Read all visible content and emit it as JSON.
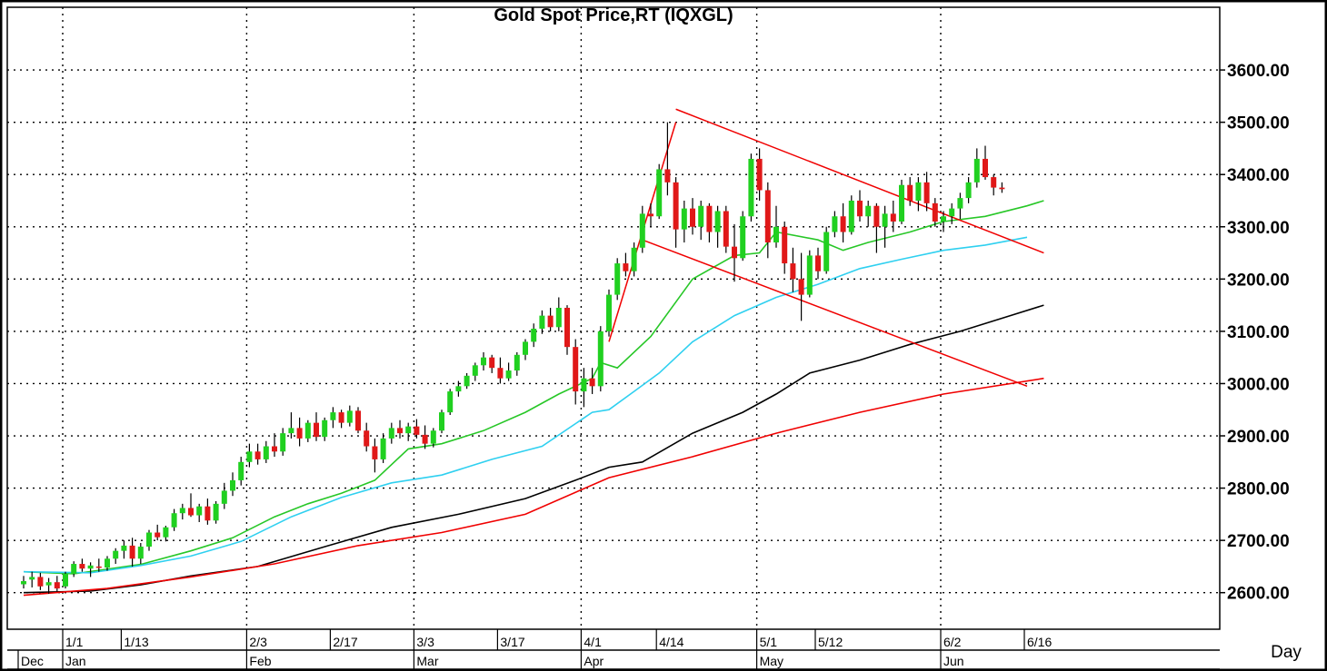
{
  "chart_data": {
    "type": "candlestick",
    "title": "Gold Spot Price,RT  (IQXGL)",
    "xlabel": "Day",
    "ylabel": "",
    "ylim": [
      2530,
      3720
    ],
    "y_ticks": [
      "2600.00",
      "2700.00",
      "2800.00",
      "2900.00",
      "3000.00",
      "3100.00",
      "3200.00",
      "3300.00",
      "3400.00",
      "3500.00",
      "3600.00"
    ],
    "x_day_labels": [
      {
        "i": 5,
        "label": "1/1"
      },
      {
        "i": 12,
        "label": "1/13"
      },
      {
        "i": 27,
        "label": "2/3"
      },
      {
        "i": 37,
        "label": "2/17"
      },
      {
        "i": 47,
        "label": "3/3"
      },
      {
        "i": 57,
        "label": "3/17"
      },
      {
        "i": 67,
        "label": "4/1"
      },
      {
        "i": 76,
        "label": "4/14"
      },
      {
        "i": 88,
        "label": "5/1"
      },
      {
        "i": 95,
        "label": "5/12"
      },
      {
        "i": 110,
        "label": "6/2"
      },
      {
        "i": 120,
        "label": "6/16"
      }
    ],
    "x_month_labels": [
      {
        "i": 0,
        "label": "Dec"
      },
      {
        "i": 5,
        "label": "Jan"
      },
      {
        "i": 27,
        "label": "Feb"
      },
      {
        "i": 47,
        "label": "Mar"
      },
      {
        "i": 67,
        "label": "Apr"
      },
      {
        "i": 88,
        "label": "May"
      },
      {
        "i": 110,
        "label": "Jun"
      }
    ],
    "ohlc": [
      [
        2616,
        2632,
        2608,
        2622
      ],
      [
        2625,
        2640,
        2610,
        2630
      ],
      [
        2630,
        2638,
        2605,
        2612
      ],
      [
        2614,
        2628,
        2598,
        2620
      ],
      [
        2620,
        2632,
        2602,
        2608
      ],
      [
        2612,
        2640,
        2608,
        2636
      ],
      [
        2636,
        2660,
        2630,
        2655
      ],
      [
        2655,
        2665,
        2640,
        2646
      ],
      [
        2646,
        2658,
        2630,
        2652
      ],
      [
        2650,
        2665,
        2640,
        2648
      ],
      [
        2648,
        2670,
        2642,
        2665
      ],
      [
        2665,
        2685,
        2655,
        2680
      ],
      [
        2680,
        2700,
        2665,
        2690
      ],
      [
        2690,
        2705,
        2650,
        2665
      ],
      [
        2665,
        2695,
        2655,
        2688
      ],
      [
        2688,
        2720,
        2680,
        2715
      ],
      [
        2715,
        2730,
        2700,
        2706
      ],
      [
        2706,
        2728,
        2698,
        2725
      ],
      [
        2725,
        2760,
        2718,
        2752
      ],
      [
        2752,
        2770,
        2740,
        2762
      ],
      [
        2762,
        2790,
        2745,
        2748
      ],
      [
        2748,
        2770,
        2735,
        2765
      ],
      [
        2765,
        2780,
        2730,
        2738
      ],
      [
        2738,
        2775,
        2732,
        2770
      ],
      [
        2770,
        2810,
        2760,
        2795
      ],
      [
        2795,
        2830,
        2785,
        2815
      ],
      [
        2815,
        2860,
        2805,
        2850
      ],
      [
        2850,
        2885,
        2840,
        2870
      ],
      [
        2870,
        2885,
        2845,
        2855
      ],
      [
        2855,
        2890,
        2848,
        2880
      ],
      [
        2880,
        2905,
        2860,
        2870
      ],
      [
        2870,
        2915,
        2862,
        2905
      ],
      [
        2905,
        2945,
        2895,
        2915
      ],
      [
        2915,
        2935,
        2880,
        2895
      ],
      [
        2895,
        2930,
        2888,
        2925
      ],
      [
        2925,
        2945,
        2890,
        2898
      ],
      [
        2898,
        2935,
        2890,
        2930
      ],
      [
        2930,
        2955,
        2915,
        2945
      ],
      [
        2945,
        2950,
        2915,
        2925
      ],
      [
        2925,
        2958,
        2918,
        2948
      ],
      [
        2948,
        2955,
        2905,
        2910
      ],
      [
        2910,
        2925,
        2870,
        2880
      ],
      [
        2880,
        2895,
        2830,
        2855
      ],
      [
        2855,
        2905,
        2848,
        2895
      ],
      [
        2895,
        2925,
        2885,
        2915
      ],
      [
        2915,
        2930,
        2895,
        2905
      ],
      [
        2905,
        2925,
        2890,
        2918
      ],
      [
        2918,
        2932,
        2895,
        2902
      ],
      [
        2902,
        2920,
        2875,
        2885
      ],
      [
        2885,
        2915,
        2878,
        2910
      ],
      [
        2910,
        2950,
        2905,
        2945
      ],
      [
        2945,
        2990,
        2940,
        2985
      ],
      [
        2985,
        3005,
        2975,
        2995
      ],
      [
        2995,
        3020,
        2990,
        3015
      ],
      [
        3015,
        3040,
        3005,
        3035
      ],
      [
        3035,
        3060,
        3025,
        3050
      ],
      [
        3050,
        3055,
        3020,
        3030
      ],
      [
        3030,
        3050,
        3000,
        3010
      ],
      [
        3010,
        3040,
        3005,
        3025
      ],
      [
        3025,
        3060,
        3015,
        3055
      ],
      [
        3055,
        3085,
        3045,
        3080
      ],
      [
        3080,
        3115,
        3070,
        3105
      ],
      [
        3105,
        3140,
        3095,
        3130
      ],
      [
        3130,
        3145,
        3100,
        3108
      ],
      [
        3108,
        3165,
        3100,
        3145
      ],
      [
        3145,
        3150,
        3055,
        3070
      ],
      [
        3070,
        3085,
        2960,
        2985
      ],
      [
        2985,
        3030,
        2955,
        3010
      ],
      [
        3010,
        3030,
        2980,
        2995
      ],
      [
        2995,
        3110,
        2985,
        3100
      ],
      [
        3100,
        3180,
        3090,
        3170
      ],
      [
        3170,
        3240,
        3160,
        3230
      ],
      [
        3230,
        3250,
        3205,
        3215
      ],
      [
        3215,
        3270,
        3205,
        3260
      ],
      [
        3260,
        3340,
        3250,
        3325
      ],
      [
        3325,
        3345,
        3300,
        3320
      ],
      [
        3320,
        3420,
        3315,
        3410
      ],
      [
        3410,
        3500,
        3360,
        3385
      ],
      [
        3385,
        3395,
        3260,
        3295
      ],
      [
        3295,
        3350,
        3270,
        3335
      ],
      [
        3335,
        3355,
        3285,
        3300
      ],
      [
        3300,
        3350,
        3275,
        3340
      ],
      [
        3340,
        3345,
        3270,
        3290
      ],
      [
        3290,
        3340,
        3260,
        3330
      ],
      [
        3330,
        3340,
        3250,
        3262
      ],
      [
        3262,
        3305,
        3195,
        3240
      ],
      [
        3240,
        3330,
        3235,
        3320
      ],
      [
        3320,
        3440,
        3310,
        3430
      ],
      [
        3430,
        3450,
        3350,
        3370
      ],
      [
        3370,
        3385,
        3240,
        3270
      ],
      [
        3270,
        3340,
        3260,
        3300
      ],
      [
        3300,
        3310,
        3210,
        3230
      ],
      [
        3230,
        3260,
        3175,
        3200
      ],
      [
        3200,
        3250,
        3120,
        3170
      ],
      [
        3170,
        3255,
        3165,
        3245
      ],
      [
        3245,
        3260,
        3200,
        3215
      ],
      [
        3215,
        3300,
        3210,
        3290
      ],
      [
        3290,
        3330,
        3280,
        3320
      ],
      [
        3320,
        3345,
        3270,
        3290
      ],
      [
        3290,
        3360,
        3285,
        3350
      ],
      [
        3350,
        3370,
        3310,
        3320
      ],
      [
        3320,
        3350,
        3300,
        3340
      ],
      [
        3340,
        3345,
        3250,
        3300
      ],
      [
        3300,
        3340,
        3260,
        3325
      ],
      [
        3325,
        3350,
        3290,
        3310
      ],
      [
        3310,
        3390,
        3305,
        3380
      ],
      [
        3380,
        3395,
        3340,
        3350
      ],
      [
        3350,
        3395,
        3330,
        3385
      ],
      [
        3385,
        3405,
        3330,
        3345
      ],
      [
        3345,
        3355,
        3300,
        3310
      ],
      [
        3310,
        3330,
        3290,
        3320
      ],
      [
        3320,
        3345,
        3305,
        3335
      ],
      [
        3335,
        3365,
        3315,
        3355
      ],
      [
        3355,
        3395,
        3345,
        3385
      ],
      [
        3385,
        3450,
        3375,
        3430
      ],
      [
        3430,
        3455,
        3390,
        3395
      ],
      [
        3395,
        3400,
        3360,
        3375
      ],
      [
        3375,
        3385,
        3365,
        3372
      ]
    ],
    "series": [
      {
        "name": "",
        "color": "#27c727",
        "points": [
          [
            0,
            2640
          ],
          [
            6,
            2636
          ],
          [
            14,
            2654
          ],
          [
            20,
            2680
          ],
          [
            25,
            2705
          ],
          [
            30,
            2745
          ],
          [
            34,
            2770
          ],
          [
            38,
            2790
          ],
          [
            42,
            2815
          ],
          [
            46,
            2875
          ],
          [
            50,
            2885
          ],
          [
            55,
            2910
          ],
          [
            60,
            2945
          ],
          [
            64,
            2980
          ],
          [
            68,
            3010
          ],
          [
            69,
            3040
          ],
          [
            71,
            3030
          ],
          [
            75,
            3090
          ],
          [
            80,
            3200
          ],
          [
            85,
            3245
          ],
          [
            88,
            3250
          ],
          [
            90,
            3290
          ],
          [
            95,
            3275
          ],
          [
            98,
            3255
          ],
          [
            101,
            3270
          ],
          [
            106,
            3290
          ],
          [
            110,
            3310
          ],
          [
            115,
            3320
          ],
          [
            120,
            3340
          ],
          [
            122,
            3350
          ]
        ]
      },
      {
        "name": "",
        "color": "#2fd0f0",
        "points": [
          [
            0,
            2640
          ],
          [
            8,
            2638
          ],
          [
            14,
            2652
          ],
          [
            20,
            2670
          ],
          [
            26,
            2698
          ],
          [
            32,
            2745
          ],
          [
            38,
            2782
          ],
          [
            44,
            2810
          ],
          [
            50,
            2825
          ],
          [
            56,
            2855
          ],
          [
            62,
            2880
          ],
          [
            68,
            2945
          ],
          [
            70,
            2950
          ],
          [
            73,
            2985
          ],
          [
            76,
            3020
          ],
          [
            80,
            3080
          ],
          [
            85,
            3130
          ],
          [
            90,
            3165
          ],
          [
            95,
            3190
          ],
          [
            100,
            3220
          ],
          [
            105,
            3238
          ],
          [
            110,
            3255
          ],
          [
            115,
            3265
          ],
          [
            120,
            3280
          ]
        ]
      },
      {
        "name": "",
        "color": "#000000",
        "points": [
          [
            0,
            2600
          ],
          [
            8,
            2603
          ],
          [
            14,
            2615
          ],
          [
            20,
            2632
          ],
          [
            28,
            2650
          ],
          [
            36,
            2688
          ],
          [
            44,
            2725
          ],
          [
            52,
            2750
          ],
          [
            60,
            2780
          ],
          [
            66,
            2815
          ],
          [
            70,
            2840
          ],
          [
            74,
            2850
          ],
          [
            80,
            2905
          ],
          [
            86,
            2945
          ],
          [
            90,
            2980
          ],
          [
            94,
            3020
          ],
          [
            100,
            3045
          ],
          [
            106,
            3075
          ],
          [
            112,
            3100
          ],
          [
            118,
            3130
          ],
          [
            122,
            3150
          ]
        ]
      },
      {
        "name": "",
        "color": "#f00000",
        "points": [
          [
            0,
            2595
          ],
          [
            10,
            2608
          ],
          [
            20,
            2630
          ],
          [
            30,
            2655
          ],
          [
            40,
            2690
          ],
          [
            50,
            2715
          ],
          [
            60,
            2750
          ],
          [
            70,
            2820
          ],
          [
            80,
            2860
          ],
          [
            90,
            2905
          ],
          [
            100,
            2945
          ],
          [
            110,
            2980
          ],
          [
            122,
            3010
          ]
        ]
      }
    ],
    "trendlines": [
      {
        "color": "#f00000",
        "from": [
          78,
          3525
        ],
        "to": [
          122,
          3250
        ]
      },
      {
        "color": "#f00000",
        "from": [
          74,
          3275
        ],
        "to": [
          120,
          2995
        ]
      },
      {
        "color": "#f00000",
        "from": [
          70,
          3080
        ],
        "to": [
          78,
          3500
        ]
      }
    ]
  }
}
